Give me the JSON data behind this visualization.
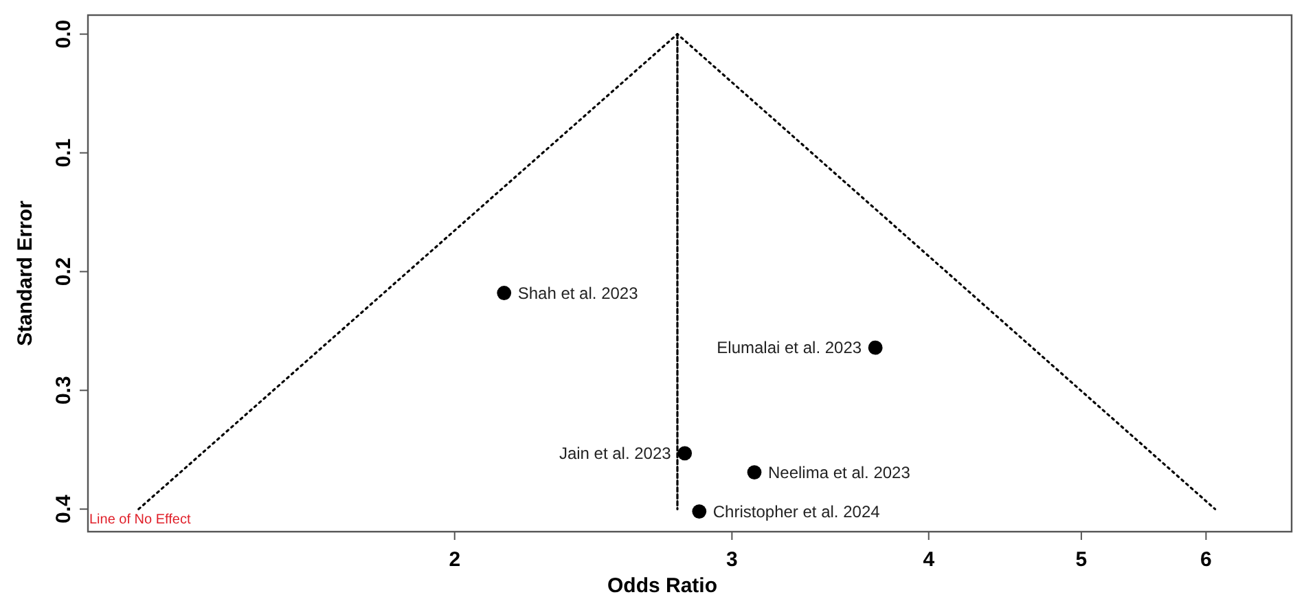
{
  "chart_data": {
    "type": "scatter",
    "xlabel": "Odds Ratio",
    "ylabel": "Standard Error",
    "log": "x",
    "xlim": [
      1.17,
      6.8
    ],
    "ylim": [
      0.419,
      -0.016
    ],
    "xticks": [
      2,
      3,
      4,
      5,
      6
    ],
    "yticks": [
      {
        "value": 0,
        "label": "0.0"
      },
      0.1,
      0.2,
      0.3,
      0.4
    ],
    "grid": false,
    "series": [
      {
        "type": "line",
        "color": "#000000",
        "line_style": "dotted",
        "marker": "none",
        "x": [
          1.26,
          2.77,
          6.08
        ],
        "values": [
          0.4,
          0,
          0.4
        ]
      },
      {
        "type": "line",
        "color": "#000000",
        "line_style": "dashed",
        "marker": "none",
        "x": [
          2.77,
          2.77
        ],
        "values": [
          0,
          0.4
        ]
      },
      {
        "color": "#000000",
        "marker": "circle",
        "x": [
          2.15,
          3.7,
          2.8,
          3.1,
          2.86
        ],
        "values": [
          0.218,
          0.264,
          0.353,
          0.369,
          0.402
        ]
      }
    ],
    "annotations": [
      {
        "text": "Shah et al. 2023",
        "x": 2.15,
        "y": 0.218
      },
      {
        "text": "Elumalai et al. 2023",
        "x": 3.7,
        "y": 0.264
      },
      {
        "text": "Jain et al. 2023",
        "x": 2.8,
        "y": 0.353
      },
      {
        "text": "Neelima et al. 2023",
        "x": 3.1,
        "y": 0.369
      },
      {
        "text": "Christopher et al. 2024",
        "x": 2.86,
        "y": 0.402
      },
      "Line of No Effect"
    ]
  }
}
